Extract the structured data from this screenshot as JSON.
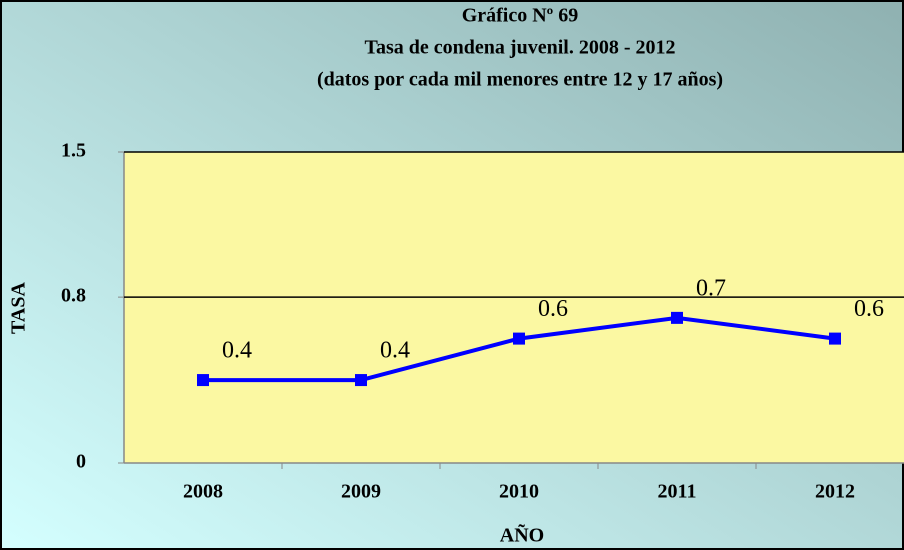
{
  "chart_data": {
    "type": "line",
    "title": "Gráfico Nº 69",
    "subtitle": "Tasa de condena juvenil. 2008 - 2012",
    "note": "(datos por cada mil menores entre 12 y 17 años)",
    "x_label": "AÑO",
    "y_label": "TASA",
    "categories": [
      "2008",
      "2009",
      "2010",
      "2011",
      "2012"
    ],
    "series": [
      {
        "name": "Tasa",
        "color": "#0000ff",
        "values": [
          0.4,
          0.4,
          0.6,
          0.7,
          0.6
        ]
      }
    ],
    "ylim": [
      0,
      1.5
    ],
    "yticks": [
      0,
      0.8,
      1.5
    ],
    "grid": true
  }
}
